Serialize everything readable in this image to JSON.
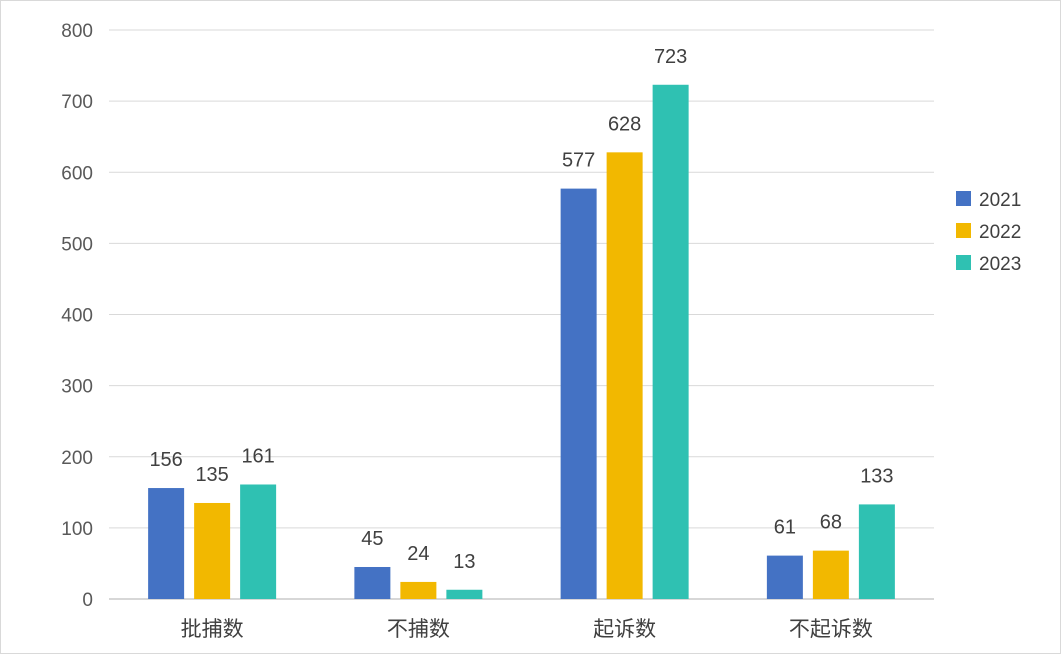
{
  "chart_data": {
    "type": "bar",
    "categories": [
      "批捕数",
      "不捕数",
      "起诉数",
      "不起诉数"
    ],
    "series": [
      {
        "name": "2021",
        "color": "#4472c4",
        "values": [
          156,
          45,
          577,
          61
        ]
      },
      {
        "name": "2022",
        "color": "#f2b800",
        "values": [
          135,
          24,
          628,
          68
        ]
      },
      {
        "name": "2023",
        "color": "#2fc1b2",
        "values": [
          161,
          13,
          723,
          133
        ]
      }
    ],
    "ylim": [
      0,
      800
    ],
    "yticks": [
      0,
      100,
      200,
      300,
      400,
      500,
      600,
      700,
      800
    ],
    "grid": true,
    "legend_position": "right",
    "data_labels": true
  }
}
